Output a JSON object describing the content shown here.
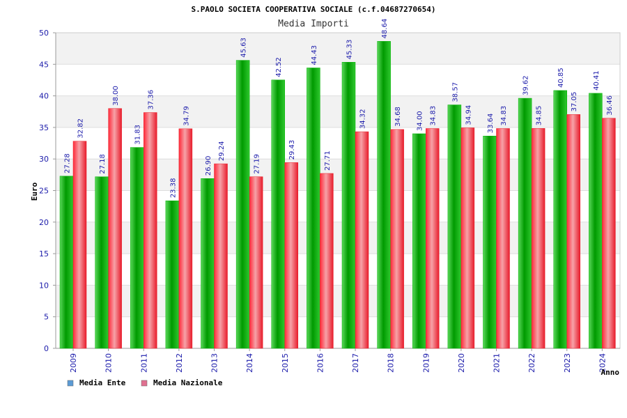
{
  "chart_data": {
    "type": "bar",
    "title": "S.PAOLO SOCIETA COOPERATIVA SOCIALE (c.f.04687270654)",
    "subtitle": "Media Importi",
    "xlabel": "Anno",
    "ylabel": "Euro",
    "ylim": [
      0,
      50
    ],
    "yticks": [
      0,
      5,
      10,
      15,
      20,
      25,
      30,
      35,
      40,
      45,
      50
    ],
    "grid": true,
    "legend_position": "bottom-left",
    "categories": [
      "2009",
      "2010",
      "2011",
      "2012",
      "2013",
      "2014",
      "2015",
      "2016",
      "2017",
      "2018",
      "2019",
      "2020",
      "2021",
      "2022",
      "2023",
      "2024"
    ],
    "series": [
      {
        "name": "Media Ente",
        "color": "#00b000",
        "legend_color": "#5b9bd5",
        "values": [
          27.28,
          27.18,
          31.83,
          23.38,
          26.9,
          45.63,
          42.52,
          44.43,
          45.33,
          48.64,
          34.0,
          38.57,
          33.64,
          39.62,
          40.85,
          40.41
        ],
        "labels": [
          "27.28",
          "27.18",
          "31.83",
          "23.38",
          "26.90",
          "45.63",
          "42.52",
          "44.43",
          "45.33",
          "48.64",
          "34.00",
          "38.57",
          "33.64",
          "39.62",
          "40.85",
          "40.41"
        ]
      },
      {
        "name": "Media Nazionale",
        "color": "#e8202a",
        "legend_color": "#e07090",
        "values": [
          32.82,
          38.0,
          37.36,
          34.79,
          29.24,
          27.19,
          29.43,
          27.71,
          34.32,
          34.68,
          34.83,
          34.94,
          34.83,
          34.85,
          37.05,
          36.46
        ],
        "labels": [
          "32.82",
          "38.00",
          "37.36",
          "34.79",
          "29.24",
          "27.19",
          "29.43",
          "27.71",
          "34.32",
          "34.68",
          "34.83",
          "34.94",
          "34.83",
          "34.85",
          "37.05",
          "36.46"
        ]
      }
    ]
  }
}
